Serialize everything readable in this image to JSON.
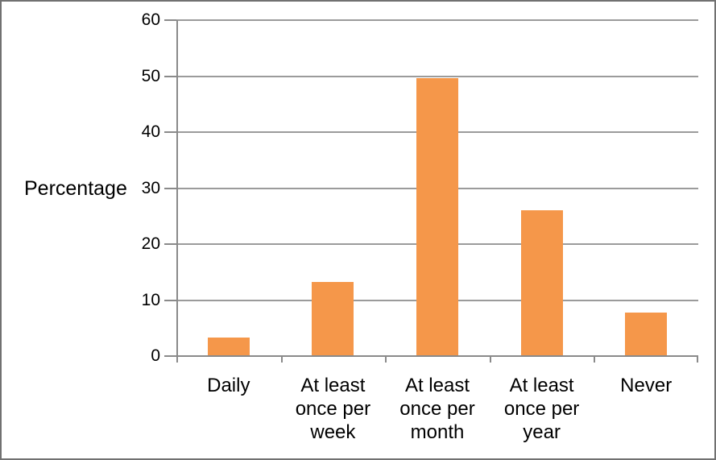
{
  "chart_data": {
    "type": "bar",
    "title": "",
    "xlabel": "",
    "ylabel": "Percentage",
    "categories": [
      "Daily",
      "At least once per week",
      "At least once per month",
      "At least once per year",
      "Never"
    ],
    "values": [
      3.3,
      13.3,
      49.7,
      26.0,
      7.7
    ],
    "ylim": [
      0,
      60
    ],
    "yticks": [
      0,
      10,
      20,
      30,
      40,
      50,
      60
    ],
    "grid": true,
    "legend": "none",
    "colors": {
      "bar": "#F5974A",
      "gridline": "#9B9B9B",
      "axis": "#8A8A8A",
      "text": "#000000",
      "background": "#FFFFFF",
      "frame_border": "#717171"
    }
  }
}
